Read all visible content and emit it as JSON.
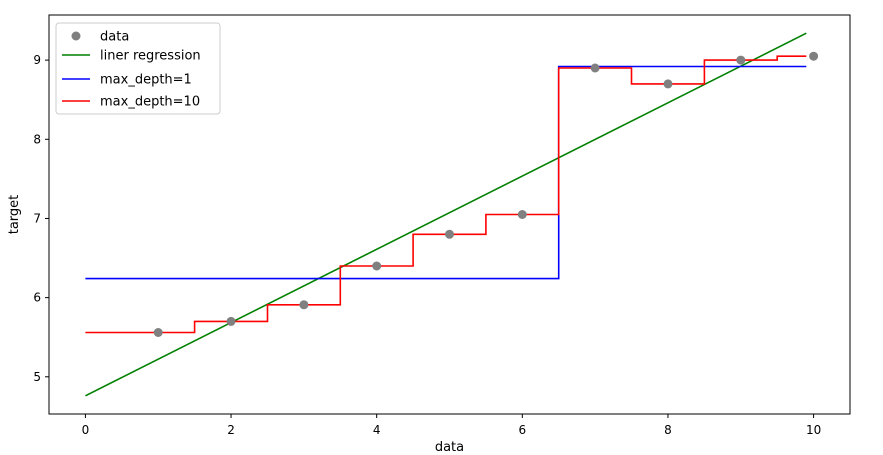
{
  "chart_data": {
    "type": "line",
    "title": "",
    "xlabel": "data",
    "ylabel": "target",
    "xlim": [
      -0.5,
      10.5
    ],
    "ylim": [
      4.53,
      9.57
    ],
    "xticks": [
      0,
      2,
      4,
      6,
      8,
      10
    ],
    "xtick_labels": [
      "0",
      "2",
      "4",
      "6",
      "8",
      "10"
    ],
    "yticks": [
      5,
      6,
      7,
      8,
      9
    ],
    "ytick_labels": [
      "5",
      "6",
      "7",
      "8",
      "9"
    ],
    "grid": false,
    "legend_position": "top-left",
    "scatter": {
      "name": "data",
      "color": "#808080",
      "x": [
        1,
        2,
        3,
        4,
        5,
        6,
        7,
        8,
        9,
        10
      ],
      "y": [
        5.56,
        5.7,
        5.91,
        6.4,
        6.8,
        7.05,
        8.9,
        8.7,
        9.0,
        9.05
      ]
    },
    "series": [
      {
        "name": "liner regression",
        "color": "#008000",
        "step": false,
        "x": [
          0.0,
          9.9
        ],
        "y": [
          4.76,
          9.34
        ]
      },
      {
        "name": "max_depth=1",
        "color": "#0000ff",
        "step": true,
        "x": [
          0.0,
          6.5,
          9.9
        ],
        "y": [
          6.24,
          8.92,
          8.92
        ]
      },
      {
        "name": "max_depth=10",
        "color": "#ff0000",
        "step": true,
        "x": [
          0.0,
          1.5,
          2.5,
          3.5,
          4.5,
          5.5,
          6.5,
          7.5,
          8.5,
          9.5,
          9.9
        ],
        "y": [
          5.56,
          5.7,
          5.91,
          6.4,
          6.8,
          7.05,
          8.9,
          8.7,
          9.0,
          9.05,
          9.05
        ]
      }
    ],
    "legend_entries": [
      "data",
      "liner regression",
      "max_depth=1",
      "max_depth=10"
    ]
  }
}
